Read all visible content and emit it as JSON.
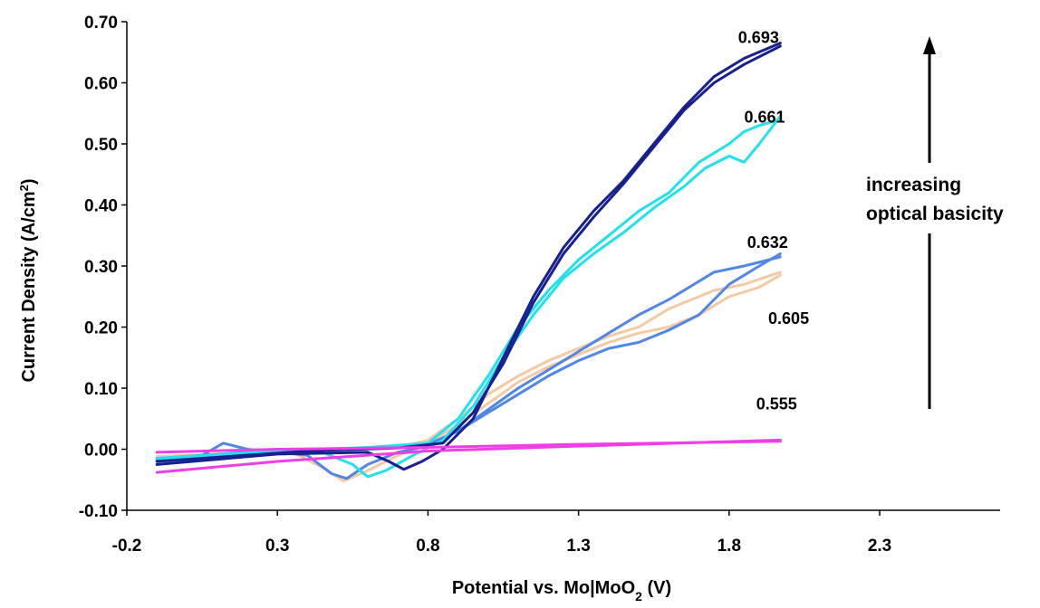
{
  "chart_data": {
    "type": "line",
    "title": "",
    "xlabel": "Potential vs. Mo|MoO 2 (V)",
    "xlabel_parts": {
      "pre": "Potential vs. Mo|MoO",
      "sub": "2",
      "post": " (V)"
    },
    "ylabel": "Current Density (A/cm2)",
    "ylabel_parts": {
      "pre": "Current Density (A/cm",
      "sup": "2",
      "post": ")"
    },
    "xlim": [
      -0.2,
      2.7
    ],
    "ylim": [
      -0.1,
      0.7
    ],
    "xticks": [
      -0.2,
      0.3,
      0.8,
      1.3,
      1.8,
      2.3
    ],
    "xtick_labels": [
      "-0.2",
      "0.3",
      "0.8",
      "1.3",
      "1.8",
      "2.3"
    ],
    "yticks": [
      -0.1,
      0.0,
      0.1,
      0.2,
      0.3,
      0.4,
      0.5,
      0.6,
      0.7
    ],
    "ytick_labels": [
      "-0.10",
      "0.00",
      "0.10",
      "0.20",
      "0.30",
      "0.40",
      "0.50",
      "0.60",
      "0.70"
    ],
    "grid": false,
    "legend": "none (series labelled directly on the plot)",
    "annotation": {
      "text_line1": "increasing",
      "text_line2": "optical basicity",
      "arrow": "upward"
    },
    "series": [
      {
        "name": "0.605",
        "color": "#f5c9a3",
        "forward": [
          [
            -0.1,
            -0.015
          ],
          [
            0.1,
            -0.008
          ],
          [
            0.35,
            -0.005
          ],
          [
            0.45,
            -0.03
          ],
          [
            0.52,
            -0.052
          ],
          [
            0.6,
            -0.035
          ],
          [
            0.7,
            -0.01
          ],
          [
            0.8,
            0.01
          ],
          [
            0.9,
            0.04
          ],
          [
            1.0,
            0.075
          ],
          [
            1.1,
            0.11
          ],
          [
            1.2,
            0.135
          ],
          [
            1.3,
            0.155
          ],
          [
            1.4,
            0.175
          ],
          [
            1.5,
            0.19
          ],
          [
            1.6,
            0.2
          ],
          [
            1.7,
            0.22
          ],
          [
            1.8,
            0.25
          ],
          [
            1.9,
            0.265
          ],
          [
            1.97,
            0.285
          ]
        ],
        "reverse": [
          [
            1.97,
            0.29
          ],
          [
            1.85,
            0.27
          ],
          [
            1.75,
            0.26
          ],
          [
            1.6,
            0.23
          ],
          [
            1.5,
            0.2
          ],
          [
            1.4,
            0.185
          ],
          [
            1.3,
            0.165
          ],
          [
            1.2,
            0.145
          ],
          [
            1.1,
            0.12
          ],
          [
            1.0,
            0.09
          ],
          [
            0.9,
            0.05
          ],
          [
            0.8,
            0.015
          ],
          [
            0.7,
            0.003
          ],
          [
            0.5,
            0.0
          ],
          [
            0.3,
            -0.003
          ],
          [
            0.1,
            -0.008
          ],
          [
            -0.1,
            -0.012
          ]
        ]
      },
      {
        "name": "0.632",
        "color": "#4f86e8",
        "forward": [
          [
            -0.1,
            -0.018
          ],
          [
            0.05,
            -0.01
          ],
          [
            0.12,
            0.01
          ],
          [
            0.2,
            0.0
          ],
          [
            0.4,
            -0.01
          ],
          [
            0.48,
            -0.04
          ],
          [
            0.53,
            -0.048
          ],
          [
            0.6,
            -0.025
          ],
          [
            0.7,
            -0.005
          ],
          [
            0.8,
            0.005
          ],
          [
            0.9,
            0.03
          ],
          [
            1.0,
            0.06
          ],
          [
            1.1,
            0.09
          ],
          [
            1.2,
            0.12
          ],
          [
            1.3,
            0.145
          ],
          [
            1.4,
            0.165
          ],
          [
            1.5,
            0.175
          ],
          [
            1.6,
            0.195
          ],
          [
            1.7,
            0.22
          ],
          [
            1.8,
            0.27
          ],
          [
            1.9,
            0.3
          ],
          [
            1.97,
            0.32
          ]
        ],
        "reverse": [
          [
            1.97,
            0.315
          ],
          [
            1.85,
            0.3
          ],
          [
            1.75,
            0.29
          ],
          [
            1.7,
            0.275
          ],
          [
            1.6,
            0.245
          ],
          [
            1.5,
            0.22
          ],
          [
            1.4,
            0.19
          ],
          [
            1.3,
            0.16
          ],
          [
            1.2,
            0.13
          ],
          [
            1.1,
            0.1
          ],
          [
            1.0,
            0.065
          ],
          [
            0.9,
            0.03
          ],
          [
            0.8,
            0.008
          ],
          [
            0.6,
            0.002
          ],
          [
            0.4,
            0.0
          ],
          [
            0.2,
            -0.005
          ],
          [
            -0.1,
            -0.015
          ]
        ]
      },
      {
        "name": "0.661",
        "color": "#22e0ec",
        "forward": [
          [
            -0.1,
            -0.02
          ],
          [
            0.2,
            -0.008
          ],
          [
            0.45,
            -0.005
          ],
          [
            0.55,
            -0.025
          ],
          [
            0.6,
            -0.045
          ],
          [
            0.66,
            -0.035
          ],
          [
            0.75,
            -0.01
          ],
          [
            0.85,
            0.015
          ],
          [
            0.95,
            0.07
          ],
          [
            1.05,
            0.15
          ],
          [
            1.15,
            0.22
          ],
          [
            1.25,
            0.28
          ],
          [
            1.35,
            0.32
          ],
          [
            1.45,
            0.355
          ],
          [
            1.55,
            0.395
          ],
          [
            1.65,
            0.43
          ],
          [
            1.72,
            0.46
          ],
          [
            1.8,
            0.48
          ],
          [
            1.85,
            0.47
          ],
          [
            1.9,
            0.5
          ],
          [
            1.97,
            0.545
          ]
        ],
        "reverse": [
          [
            1.97,
            0.54
          ],
          [
            1.9,
            0.53
          ],
          [
            1.85,
            0.52
          ],
          [
            1.8,
            0.5
          ],
          [
            1.7,
            0.47
          ],
          [
            1.6,
            0.42
          ],
          [
            1.5,
            0.39
          ],
          [
            1.4,
            0.35
          ],
          [
            1.3,
            0.31
          ],
          [
            1.2,
            0.26
          ],
          [
            1.1,
            0.2
          ],
          [
            1.0,
            0.12
          ],
          [
            0.9,
            0.05
          ],
          [
            0.8,
            0.01
          ],
          [
            0.6,
            0.003
          ],
          [
            0.3,
            -0.003
          ],
          [
            -0.1,
            -0.015
          ]
        ]
      },
      {
        "name": "0.693",
        "color": "#16208f",
        "forward": [
          [
            -0.1,
            -0.025
          ],
          [
            0.3,
            -0.008
          ],
          [
            0.6,
            -0.005
          ],
          [
            0.67,
            -0.02
          ],
          [
            0.72,
            -0.033
          ],
          [
            0.78,
            -0.02
          ],
          [
            0.85,
            0.0
          ],
          [
            0.95,
            0.05
          ],
          [
            1.05,
            0.15
          ],
          [
            1.15,
            0.25
          ],
          [
            1.25,
            0.33
          ],
          [
            1.35,
            0.39
          ],
          [
            1.45,
            0.44
          ],
          [
            1.55,
            0.5
          ],
          [
            1.65,
            0.56
          ],
          [
            1.75,
            0.61
          ],
          [
            1.85,
            0.64
          ],
          [
            1.97,
            0.665
          ]
        ],
        "reverse": [
          [
            1.97,
            0.66
          ],
          [
            1.85,
            0.63
          ],
          [
            1.75,
            0.6
          ],
          [
            1.65,
            0.555
          ],
          [
            1.55,
            0.495
          ],
          [
            1.45,
            0.435
          ],
          [
            1.35,
            0.38
          ],
          [
            1.25,
            0.32
          ],
          [
            1.15,
            0.24
          ],
          [
            1.05,
            0.14
          ],
          [
            0.95,
            0.06
          ],
          [
            0.85,
            0.01
          ],
          [
            0.7,
            0.002
          ],
          [
            0.4,
            -0.003
          ],
          [
            -0.1,
            -0.02
          ]
        ]
      },
      {
        "name": "0.555",
        "color": "#ee3fe6",
        "forward": [
          [
            -0.1,
            -0.038
          ],
          [
            0.3,
            -0.02
          ],
          [
            0.8,
            -0.003
          ],
          [
            1.3,
            0.005
          ],
          [
            1.97,
            0.015
          ]
        ],
        "reverse": [
          [
            1.97,
            0.013
          ],
          [
            1.3,
            0.008
          ],
          [
            0.8,
            0.003
          ],
          [
            0.3,
            0.0
          ],
          [
            -0.1,
            -0.005
          ]
        ]
      }
    ],
    "series_label_anchor": {
      "0.693": [
        1.83,
        0.665
      ],
      "0.661": [
        1.85,
        0.535
      ],
      "0.632": [
        1.86,
        0.33
      ],
      "0.605": [
        1.93,
        0.205
      ],
      "0.555": [
        1.89,
        0.065
      ]
    }
  }
}
